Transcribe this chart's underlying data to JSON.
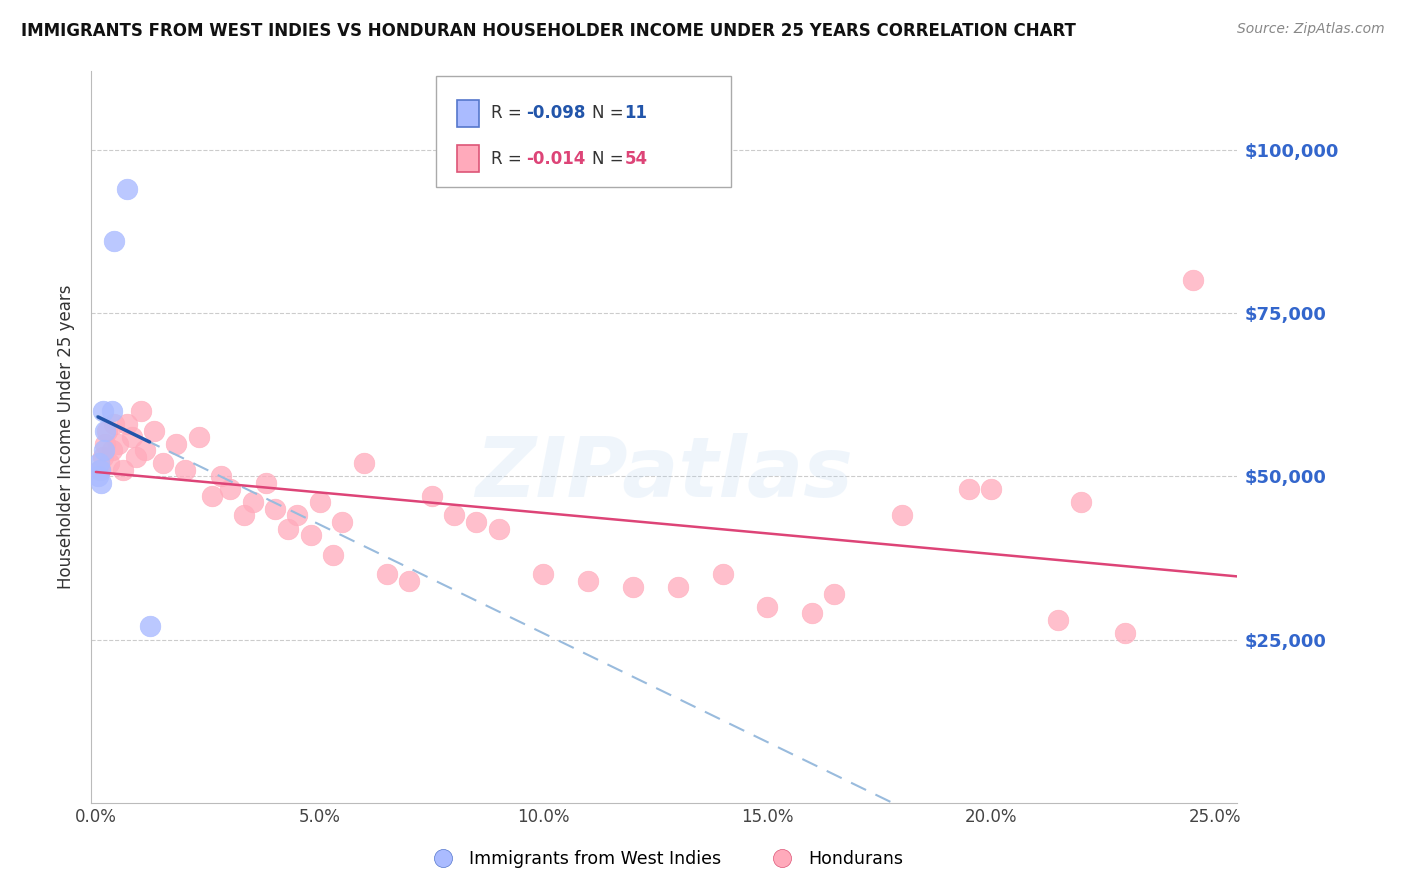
{
  "title": "IMMIGRANTS FROM WEST INDIES VS HONDURAN HOUSEHOLDER INCOME UNDER 25 YEARS CORRELATION CHART",
  "source": "Source: ZipAtlas.com",
  "ylabel": "Householder Income Under 25 years",
  "xlim": [
    -0.1,
    25.5
  ],
  "ylim": [
    0,
    112000
  ],
  "west_indies_R": -0.098,
  "west_indies_N": 11,
  "hondurans_R": -0.014,
  "hondurans_N": 54,
  "west_indies_color": "#aabbff",
  "hondurans_color": "#ffaabb",
  "west_indies_edge": "#5577cc",
  "hondurans_edge": "#dd5577",
  "west_indies_line_color": "#2255aa",
  "hondurans_line_color": "#dd4477",
  "watermark": "ZIPatlas",
  "ytick_positions": [
    0,
    25000,
    50000,
    75000,
    100000
  ],
  "ytick_labels_right": [
    "",
    "$25,000",
    "$50,000",
    "$75,000",
    "$100,000"
  ],
  "xtick_positions": [
    0,
    5,
    10,
    15,
    20,
    25
  ],
  "xtick_labels": [
    "0.0%",
    "5.0%",
    "10.0%",
    "15.0%",
    "20.0%",
    "25.0%"
  ],
  "west_indies_x": [
    0.4,
    0.7,
    0.15,
    0.2,
    0.1,
    0.05,
    0.08,
    0.12,
    0.18,
    1.2,
    0.35
  ],
  "west_indies_y": [
    86000,
    94000,
    60000,
    57000,
    51000,
    50000,
    52000,
    49000,
    54000,
    27000,
    60000
  ],
  "hondurans_x": [
    0.1,
    0.15,
    0.2,
    0.25,
    0.3,
    0.35,
    0.4,
    0.5,
    0.6,
    0.7,
    0.8,
    0.9,
    1.0,
    1.1,
    1.3,
    1.5,
    1.8,
    2.0,
    2.3,
    2.6,
    2.8,
    3.0,
    3.3,
    3.5,
    3.8,
    4.0,
    4.3,
    4.5,
    4.8,
    5.0,
    5.3,
    5.5,
    6.0,
    6.5,
    7.0,
    7.5,
    8.0,
    8.5,
    9.0,
    10.0,
    11.0,
    12.0,
    13.0,
    14.0,
    15.0,
    16.0,
    16.5,
    18.0,
    19.5,
    20.0,
    21.5,
    22.0,
    23.0,
    24.5
  ],
  "hondurans_y": [
    51000,
    53000,
    55000,
    57000,
    52000,
    54000,
    58000,
    55000,
    51000,
    58000,
    56000,
    53000,
    60000,
    54000,
    57000,
    52000,
    55000,
    51000,
    56000,
    47000,
    50000,
    48000,
    44000,
    46000,
    49000,
    45000,
    42000,
    44000,
    41000,
    46000,
    38000,
    43000,
    52000,
    35000,
    34000,
    47000,
    44000,
    43000,
    42000,
    35000,
    34000,
    33000,
    33000,
    35000,
    30000,
    29000,
    32000,
    44000,
    48000,
    48000,
    28000,
    46000,
    26000,
    80000
  ]
}
